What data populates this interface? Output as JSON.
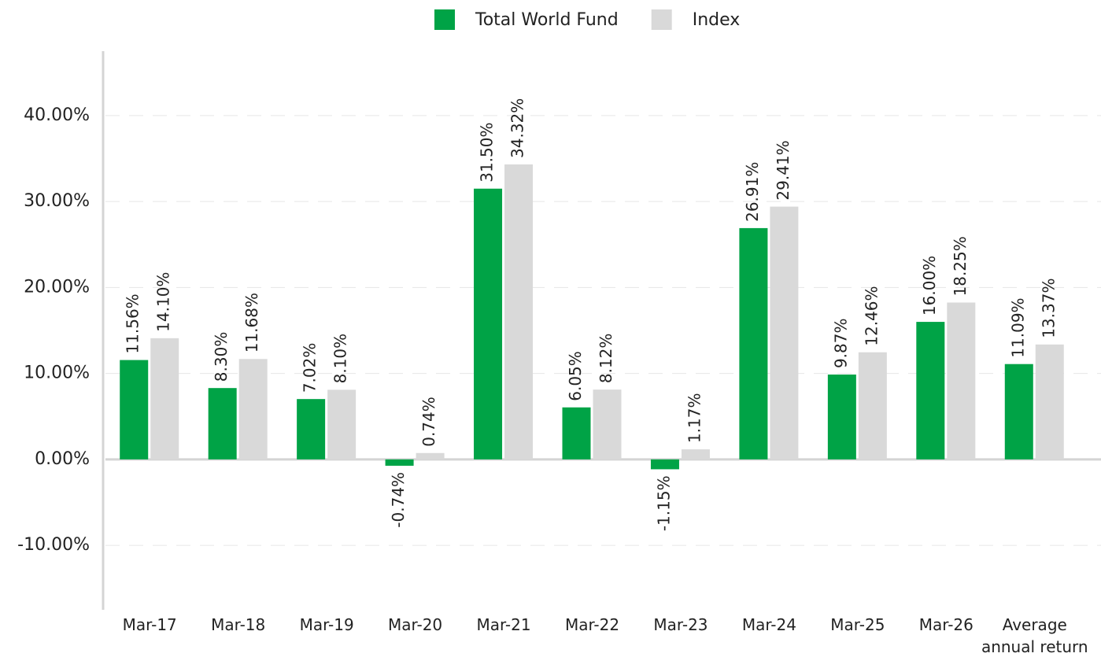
{
  "chart_data": {
    "type": "bar",
    "categories": [
      "Mar-17",
      "Mar-18",
      "Mar-19",
      "Mar-20",
      "Mar-21",
      "Mar-22",
      "Mar-23",
      "Mar-24",
      "Mar-25",
      "Mar-26",
      "Average annual return"
    ],
    "series": [
      {
        "name": "Total World Fund",
        "color": "#00a346",
        "values": [
          11.56,
          8.3,
          7.02,
          -0.74,
          31.5,
          6.05,
          -1.15,
          26.91,
          9.87,
          16.0,
          11.09
        ],
        "value_labels": [
          "11.56%",
          "8.30%",
          "7.02%",
          "-0.74%",
          "31.50%",
          "6.05%",
          "-1.15%",
          "26.91%",
          "9.87%",
          "16.00%",
          "11.09%"
        ]
      },
      {
        "name": "Index",
        "color": "#d9d9d9",
        "values": [
          14.1,
          11.68,
          8.1,
          0.74,
          34.32,
          8.12,
          1.17,
          29.41,
          12.46,
          18.25,
          13.37
        ],
        "value_labels": [
          "14.10%",
          "11.68%",
          "8.10%",
          "0.74%",
          "34.32%",
          "8.12%",
          "1.17%",
          "29.41%",
          "12.46%",
          "18.25%",
          "13.37%"
        ]
      }
    ],
    "ylim": [
      -17.5,
      47.5
    ],
    "yticks": [
      {
        "value": -10,
        "label": "-10.00%"
      },
      {
        "value": 0,
        "label": "0.00%"
      },
      {
        "value": 10,
        "label": "10.00%"
      },
      {
        "value": 20,
        "label": "20.00%"
      },
      {
        "value": 30,
        "label": "30.00%"
      },
      {
        "value": 40,
        "label": "40.00%"
      }
    ],
    "grid": true,
    "legend": "top"
  }
}
